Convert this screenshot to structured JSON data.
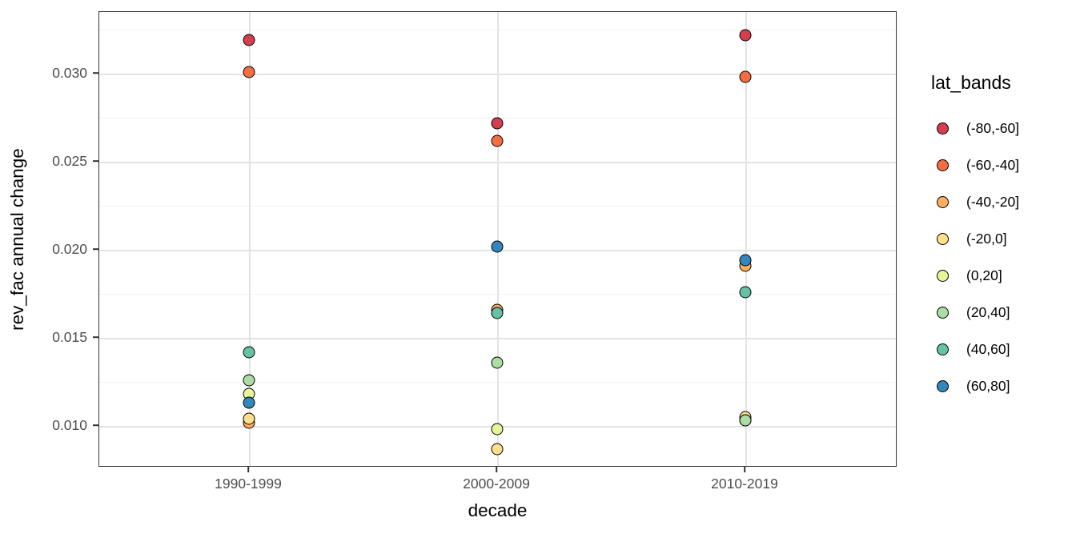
{
  "chart_data": {
    "type": "scatter",
    "title": "",
    "xlabel": "decade",
    "ylabel": "rev_fac annual change",
    "categories": [
      "1990-1999",
      "2000-2009",
      "2010-2019"
    ],
    "y_ticks": [
      0.01,
      0.015,
      0.02,
      0.025,
      0.03
    ],
    "y_tick_labels": [
      "0.010",
      "0.015",
      "0.020",
      "0.025",
      "0.030"
    ],
    "y_minor_ticks": [
      0.0125,
      0.0175,
      0.0225,
      0.0275,
      0.0325
    ],
    "ylim": [
      0.0076,
      0.0335
    ],
    "grid": true,
    "legend": {
      "title": "lat_bands",
      "position": "right"
    },
    "series": [
      {
        "name": "(-80,-60]",
        "color": "#d53e4f",
        "values": [
          0.0319,
          0.0272,
          0.0322
        ]
      },
      {
        "name": "(-60,-40]",
        "color": "#f46d43",
        "values": [
          0.0301,
          0.0262,
          0.0298
        ]
      },
      {
        "name": "(-40,-20]",
        "color": "#fdae61",
        "values": [
          0.0102,
          0.0166,
          0.0191
        ]
      },
      {
        "name": "(-20,0]",
        "color": "#fee08b",
        "values": [
          0.0104,
          0.0087,
          0.0105
        ]
      },
      {
        "name": "(0,20]",
        "color": "#e6f598",
        "values": [
          0.0118,
          0.0098,
          0.0103
        ]
      },
      {
        "name": "(20,40]",
        "color": "#abdda4",
        "values": [
          0.0126,
          0.0136,
          0.0103
        ]
      },
      {
        "name": "(40,60]",
        "color": "#66c2a5",
        "values": [
          0.0142,
          0.0164,
          0.0176
        ]
      },
      {
        "name": "(60,80]",
        "color": "#3288bd",
        "values": [
          0.0113,
          0.0202,
          0.0194
        ]
      }
    ],
    "point_style": {
      "diameter": 15,
      "stroke": "#000000",
      "stroke_width": 1.8
    },
    "theme": {
      "panel_border": "#333333",
      "grid_major": "#e3e3e3",
      "grid_minor": "#f2f2f2",
      "tick_label_color": "#4d4d4d",
      "title_color": "#000000"
    }
  }
}
